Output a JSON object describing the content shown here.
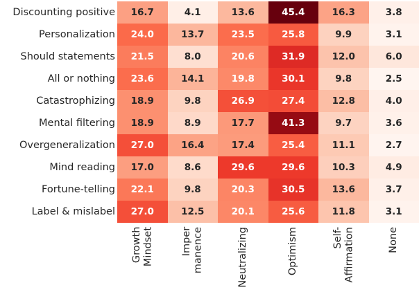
{
  "chart_data": {
    "type": "heatmap",
    "title": "",
    "rows": [
      "Discounting positive",
      "Personalization",
      "Should statements",
      "All or nothing",
      "Catastrophizing",
      "Mental filtering",
      "Overgeneralization",
      "Mind reading",
      "Fortune-telling",
      "Label & mislabel"
    ],
    "columns": [
      "Growth\nMindset",
      "Imper\nmanence",
      "Neutralizing",
      "Optimism",
      "Self-\nAffirmation",
      "None"
    ],
    "values": [
      [
        16.7,
        4.1,
        13.6,
        45.4,
        16.3,
        3.8
      ],
      [
        24.0,
        13.7,
        23.5,
        25.8,
        9.9,
        3.1
      ],
      [
        21.5,
        8.0,
        20.6,
        31.9,
        12.0,
        6.0
      ],
      [
        23.6,
        14.1,
        19.8,
        30.1,
        9.8,
        2.5
      ],
      [
        18.9,
        9.8,
        26.9,
        27.4,
        12.8,
        4.0
      ],
      [
        18.9,
        8.9,
        17.7,
        41.3,
        9.7,
        3.6
      ],
      [
        27.0,
        16.4,
        17.4,
        25.4,
        11.1,
        2.7
      ],
      [
        17.0,
        8.6,
        29.6,
        29.6,
        10.3,
        4.9
      ],
      [
        22.1,
        9.8,
        20.3,
        30.5,
        13.6,
        3.7
      ],
      [
        27.0,
        12.5,
        20.1,
        25.6,
        11.8,
        3.1
      ]
    ],
    "value_decimals": 1,
    "vmin": 2.5,
    "vmax": 45.4,
    "colormap": {
      "name": "Reds",
      "stops": [
        {
          "pos": 0.0,
          "hex": "#fff5f0"
        },
        {
          "pos": 0.125,
          "hex": "#fee0d2"
        },
        {
          "pos": 0.25,
          "hex": "#fcbba1"
        },
        {
          "pos": 0.375,
          "hex": "#fc9272"
        },
        {
          "pos": 0.5,
          "hex": "#fb6a4a"
        },
        {
          "pos": 0.625,
          "hex": "#ef3b2c"
        },
        {
          "pos": 0.75,
          "hex": "#cb181d"
        },
        {
          "pos": 0.875,
          "hex": "#a50f15"
        },
        {
          "pos": 1.0,
          "hex": "#67000d"
        }
      ]
    },
    "annotation_colors": {
      "dark": "#262626",
      "light": "#ffffff"
    },
    "label_color": "#262626",
    "background": "#ffffff",
    "grid": false,
    "legend_position": "none"
  }
}
